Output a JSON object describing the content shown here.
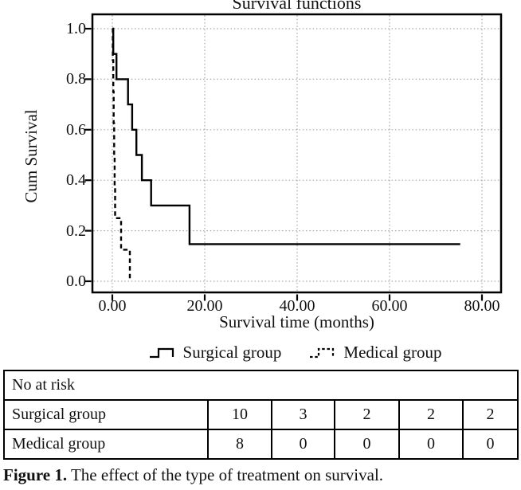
{
  "chart": {
    "title": "Survival functions",
    "xlabel": "Survival time (months)",
    "ylabel": "Cum Survival",
    "x_ticks": [
      "0.00",
      "20.00",
      "40.00",
      "60.00",
      "80.00"
    ],
    "y_ticks": [
      "1.0",
      "0.8",
      "0.6",
      "0.4",
      "0.2",
      "0.0"
    ],
    "legend": [
      {
        "label": "Surgical group",
        "style": "solid"
      },
      {
        "label": "Medical group",
        "style": "dashed"
      }
    ]
  },
  "chart_data": {
    "type": "line",
    "subtype": "kaplan-meier-step",
    "title": "Survival functions",
    "xlabel": "Survival time (months)",
    "ylabel": "Cum Survival",
    "xlim": [
      0,
      80
    ],
    "ylim": [
      0.0,
      1.0
    ],
    "x_tick_values": [
      0,
      20,
      40,
      60,
      80
    ],
    "y_tick_values": [
      1.0,
      0.8,
      0.6,
      0.4,
      0.2,
      0.0
    ],
    "grid": true,
    "legend_position": "bottom",
    "series": [
      {
        "name": "Surgical group",
        "line": "solid",
        "color": "#000000",
        "step_points": [
          [
            0,
            1.0
          ],
          [
            0.2,
            0.9
          ],
          [
            0.9,
            0.8
          ],
          [
            3.4,
            0.7
          ],
          [
            4.3,
            0.6
          ],
          [
            5.2,
            0.5
          ],
          [
            6.4,
            0.4
          ],
          [
            8.4,
            0.3
          ],
          [
            16.7,
            0.147
          ],
          [
            75.3,
            0.147
          ]
        ]
      },
      {
        "name": "Medical group",
        "line": "dashed",
        "color": "#000000",
        "step_points": [
          [
            0,
            1.0
          ],
          [
            0.1,
            0.875
          ],
          [
            0.2,
            0.75
          ],
          [
            0.3,
            0.625
          ],
          [
            0.4,
            0.5
          ],
          [
            0.5,
            0.375
          ],
          [
            0.6,
            0.25
          ],
          [
            1.9,
            0.125
          ],
          [
            3.8,
            0.0
          ]
        ]
      }
    ]
  },
  "risk_table": {
    "header": "No at risk",
    "rows": [
      {
        "label": "Surgical group",
        "values": [
          "10",
          "3",
          "2",
          "2",
          "2"
        ]
      },
      {
        "label": "Medical group",
        "values": [
          "8",
          "0",
          "0",
          "0",
          "0"
        ]
      }
    ]
  },
  "caption": {
    "bold": "Figure 1.",
    "rest": " The effect of the type of treatment on survival."
  },
  "colors": {
    "line": "#000000",
    "grid": "#a8a8a8",
    "border": "#000000",
    "background": "#ffffff",
    "text": "#111111"
  }
}
